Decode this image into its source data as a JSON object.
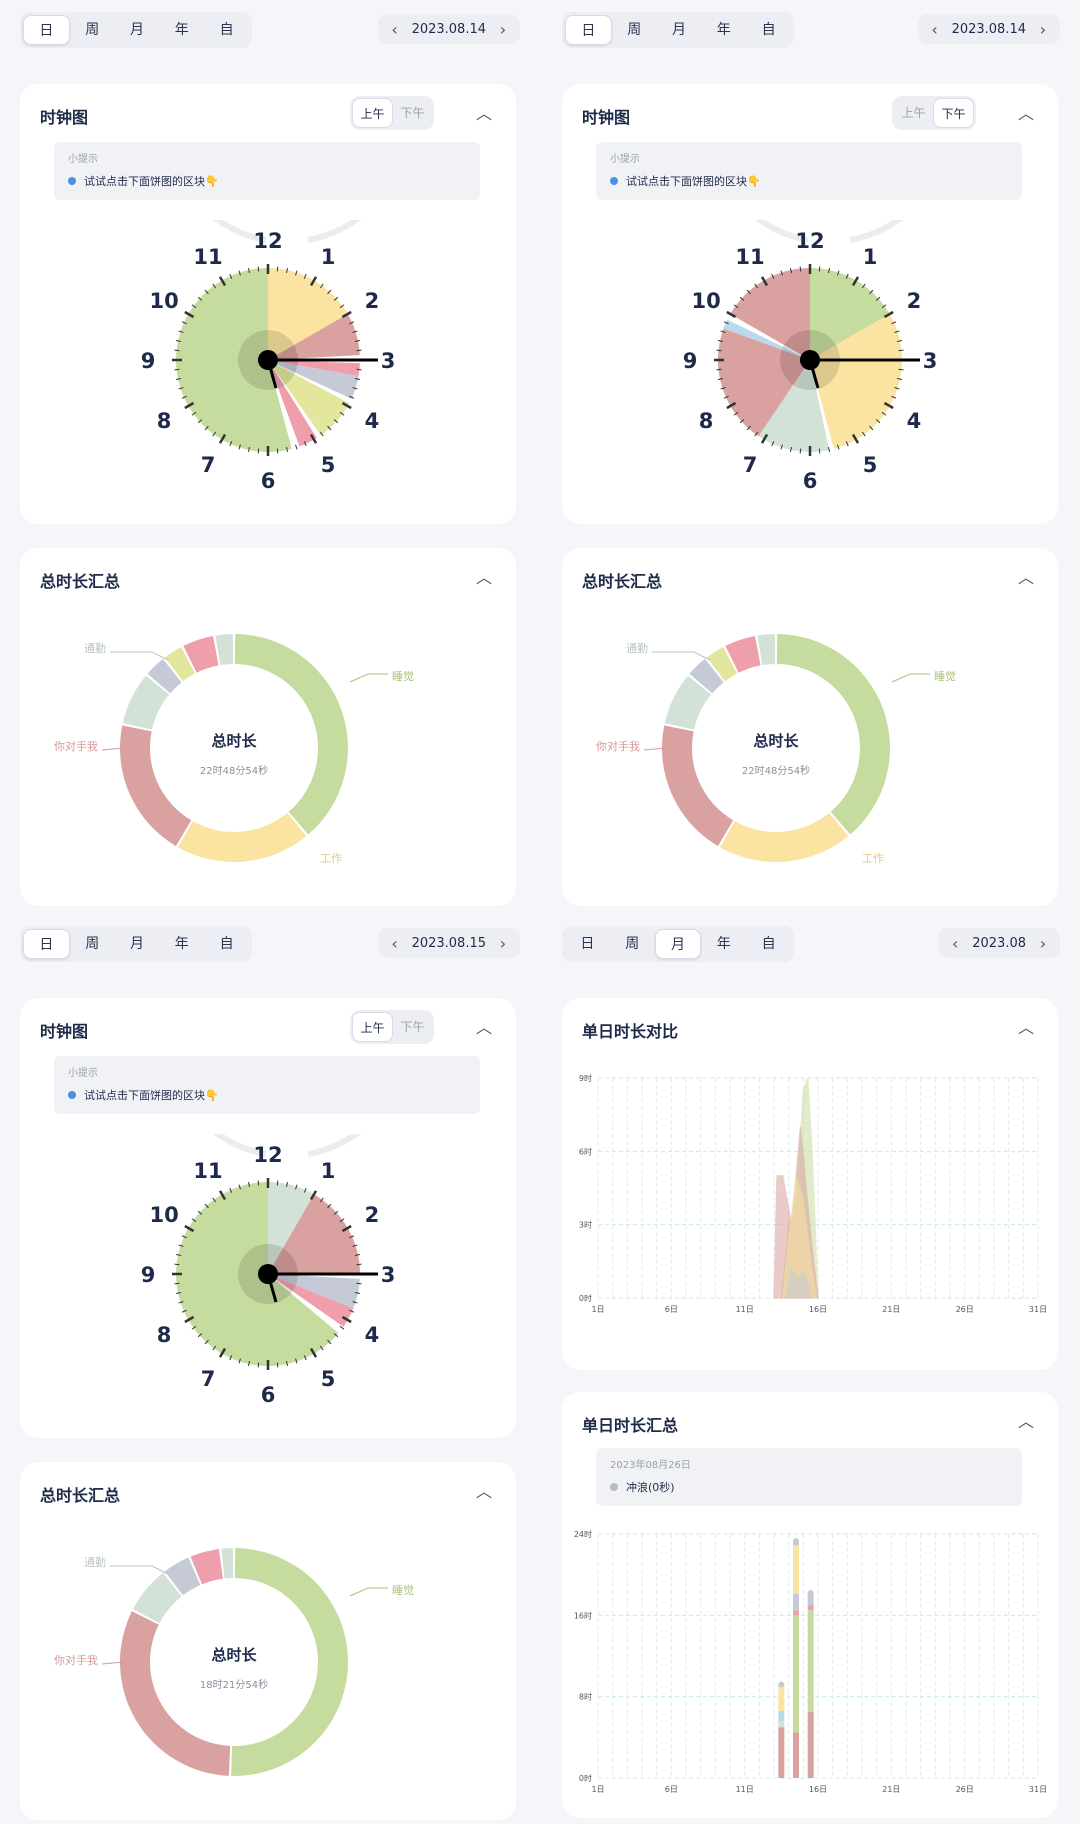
{
  "tabs": [
    "日",
    "周",
    "月",
    "年",
    "自"
  ],
  "panels": [
    {
      "date": "2023.08.14",
      "active_tab": 0
    },
    {
      "date": "2023.08.14",
      "active_tab": 0
    },
    {
      "date": "2023.08.15",
      "active_tab": 0
    },
    {
      "date": "2023.08",
      "active_tab": 2
    }
  ],
  "clock_card": {
    "title": "时钟图",
    "am": "上午",
    "pm": "下午",
    "tip_title": "小提示",
    "tip_text": "试试点击下面饼图的区块👇",
    "hours": [
      "12",
      "1",
      "2",
      "3",
      "4",
      "5",
      "6",
      "7",
      "8",
      "9",
      "10",
      "11"
    ]
  },
  "summary_card": {
    "title": "总时长汇总",
    "center_label": "总时长",
    "label_sleep": "睡觉",
    "label_phone": "你对手我",
    "label_work": "工作",
    "label_travel": "通勤"
  },
  "summaries": [
    {
      "total": "22时48分54秒"
    },
    {
      "total": "22时48分54秒"
    },
    {
      "total": "18时21分54秒"
    }
  ],
  "compare_card": {
    "title": "单日时长对比",
    "y_ticks": [
      "0时",
      "3时",
      "6时",
      "9时"
    ],
    "x_ticks": [
      "1日",
      "6日",
      "11日",
      "16日",
      "21日",
      "26日",
      "31日"
    ]
  },
  "daily_card": {
    "title": "单日时长汇总",
    "tip_date": "2023年08月26日",
    "tip_item": "冲浪(0秒)",
    "y_ticks": [
      "0时",
      "8时",
      "16时",
      "24时"
    ],
    "x_ticks": [
      "1日",
      "6日",
      "11日",
      "16日",
      "21日",
      "26日",
      "31日"
    ]
  },
  "colors": {
    "sleep": "#c6dc9e",
    "work": "#fbe3a1",
    "phone": "#d9a19f",
    "travel": "#d3e2d6",
    "grey": "#c5cad6",
    "yellowgreen": "#e3e79e",
    "pink": "#ef9fac",
    "blue": "#bcd8ec"
  }
}
